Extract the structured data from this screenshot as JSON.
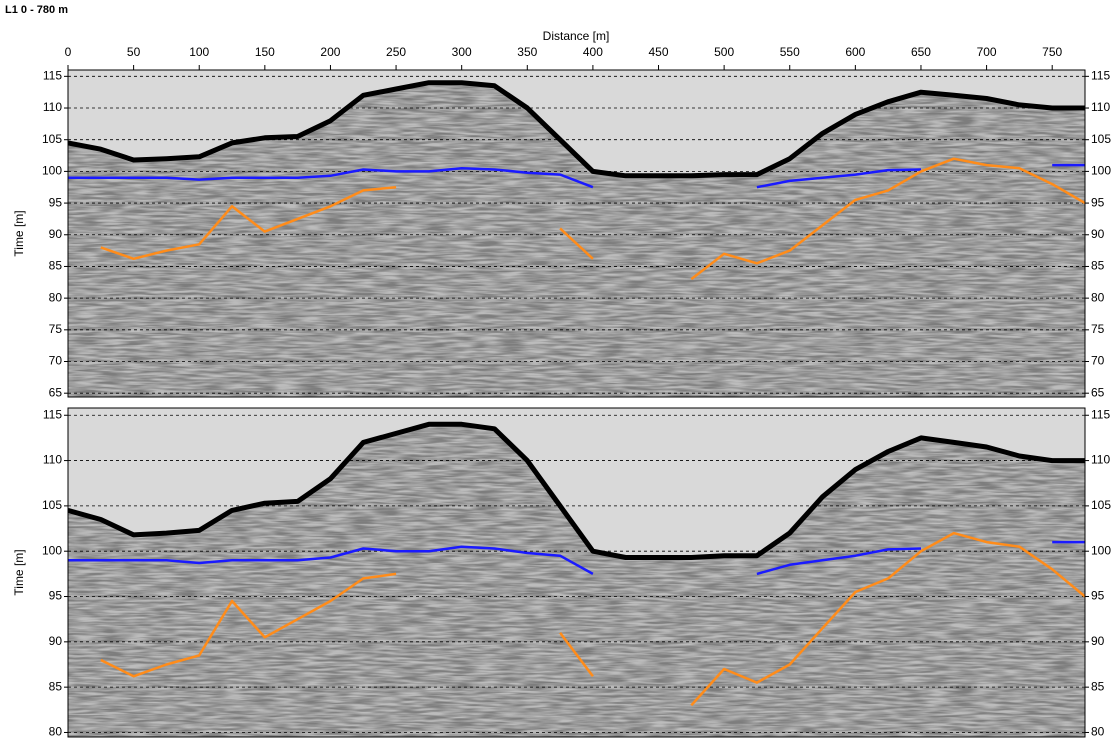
{
  "chart_data": [
    {
      "type": "line",
      "title": "L1 0 - 780 m",
      "x_label": "Distance [m]",
      "y_label": "Time [m]",
      "x": [
        0,
        25,
        50,
        75,
        100,
        125,
        150,
        175,
        200,
        225,
        250,
        275,
        300,
        325,
        350,
        375,
        400,
        425,
        450,
        475,
        500,
        525,
        550,
        575,
        600,
        625,
        650,
        675,
        700,
        725,
        750,
        775
      ],
      "xlim": [
        0,
        775
      ],
      "xticks": [
        0,
        50,
        100,
        150,
        200,
        250,
        300,
        350,
        400,
        450,
        500,
        550,
        600,
        650,
        700,
        750
      ],
      "ylim": [
        64.4,
        116
      ],
      "yticks": [
        65,
        70,
        75,
        80,
        85,
        90,
        95,
        100,
        105,
        110,
        115
      ],
      "grid": true,
      "series": [
        {
          "color": "#000000",
          "values": [
            104.5,
            103.5,
            101.8,
            102,
            102.3,
            104.5,
            105.3,
            105.5,
            108,
            112,
            113,
            114,
            114,
            113.5,
            110,
            105,
            100,
            99.3,
            99.3,
            99.3,
            99.5,
            99.5,
            102,
            106,
            109,
            111,
            112.5,
            112,
            111.5,
            110.5,
            110,
            110
          ]
        },
        {
          "color": "#1a1aff",
          "values": [
            99,
            99,
            99,
            99,
            98.7,
            99,
            99,
            99,
            99.3,
            100.3,
            100,
            100,
            100.5,
            100.3,
            99.8,
            99.5,
            97.5,
            null,
            null,
            null,
            null,
            97.5,
            98.5,
            99,
            99.5,
            100.2,
            100.3,
            null,
            null,
            null,
            101,
            101
          ]
        },
        {
          "color": "#ff8c1a",
          "values": [
            null,
            88,
            86.2,
            87.5,
            88.5,
            94.5,
            90.5,
            92.5,
            94.5,
            97,
            97.5,
            null,
            null,
            null,
            null,
            91,
            86.2,
            null,
            null,
            83,
            87,
            85.5,
            87.5,
            91.5,
            95.5,
            97,
            100,
            102,
            101,
            100.5,
            98,
            95
          ]
        }
      ]
    },
    {
      "type": "line",
      "y_label": "Time [m]",
      "x": [
        0,
        25,
        50,
        75,
        100,
        125,
        150,
        175,
        200,
        225,
        250,
        275,
        300,
        325,
        350,
        375,
        400,
        425,
        450,
        475,
        500,
        525,
        550,
        575,
        600,
        625,
        650,
        675,
        700,
        725,
        750,
        775
      ],
      "xlim": [
        0,
        775
      ],
      "ylim": [
        79.5,
        115.8
      ],
      "yticks": [
        80,
        85,
        90,
        95,
        100,
        105,
        110,
        115
      ],
      "grid": true,
      "series": [
        {
          "color": "#000000",
          "values": [
            104.5,
            103.5,
            101.8,
            102,
            102.3,
            104.5,
            105.3,
            105.5,
            108,
            112,
            113,
            114,
            114,
            113.5,
            110,
            105,
            100,
            99.3,
            99.3,
            99.3,
            99.5,
            99.5,
            102,
            106,
            109,
            111,
            112.5,
            112,
            111.5,
            110.5,
            110,
            110
          ]
        },
        {
          "color": "#1a1aff",
          "values": [
            99,
            99,
            99,
            99,
            98.7,
            99,
            99,
            99,
            99.3,
            100.3,
            100,
            100,
            100.5,
            100.3,
            99.8,
            99.5,
            97.5,
            null,
            null,
            null,
            null,
            97.5,
            98.5,
            99,
            99.5,
            100.2,
            100.3,
            null,
            null,
            null,
            101,
            101
          ]
        },
        {
          "color": "#ff8c1a",
          "values": [
            null,
            88,
            86.2,
            87.5,
            88.5,
            94.5,
            90.5,
            92.5,
            94.5,
            97,
            97.5,
            null,
            null,
            null,
            null,
            91,
            86.2,
            null,
            null,
            83,
            87,
            85.5,
            87.5,
            91.5,
            95.5,
            97,
            100,
            102,
            101,
            100.5,
            98,
            95
          ]
        }
      ]
    }
  ]
}
